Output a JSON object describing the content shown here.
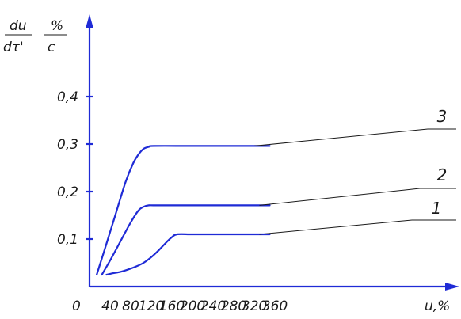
{
  "chart_data": {
    "type": "line",
    "ylabel": {
      "num1": "du",
      "den1": "dτ'",
      "num2": "%",
      "den2": "c"
    },
    "xlabel": "u,%",
    "x_origin_label": "0",
    "x_ticks": [
      40,
      80,
      120,
      160,
      200,
      240,
      280,
      320,
      360
    ],
    "x_tick_labels": [
      "40",
      "80",
      "120",
      "160",
      "200",
      "240",
      "280",
      "320",
      "360"
    ],
    "y_ticks": [
      0.1,
      0.2,
      0.3,
      0.4
    ],
    "y_tick_labels": [
      "0,1",
      "0,2",
      "0,3",
      "0,4"
    ],
    "xlim": [
      0,
      380
    ],
    "ylim": [
      0,
      0.5
    ],
    "grid": false,
    "series": [
      {
        "name": "1",
        "x": [
          33,
          45,
          60,
          75,
          90,
          105,
          120,
          135,
          150,
          160,
          170,
          200,
          250,
          300,
          350
        ],
        "y": [
          0.025,
          0.028,
          0.031,
          0.036,
          0.042,
          0.05,
          0.062,
          0.077,
          0.094,
          0.104,
          0.11,
          0.11,
          0.11,
          0.11,
          0.11
        ]
      },
      {
        "name": "2",
        "x": [
          24,
          40,
          60,
          80,
          95,
          105,
          115,
          130,
          200,
          300,
          350
        ],
        "y": [
          0.025,
          0.055,
          0.095,
          0.135,
          0.16,
          0.168,
          0.171,
          0.171,
          0.171,
          0.171,
          0.171
        ]
      },
      {
        "name": "3",
        "x": [
          14,
          30,
          50,
          70,
          85,
          95,
          105,
          115,
          125,
          200,
          300,
          350
        ],
        "y": [
          0.025,
          0.08,
          0.15,
          0.22,
          0.26,
          0.278,
          0.29,
          0.294,
          0.296,
          0.296,
          0.296,
          0.296
        ]
      }
    ]
  },
  "colors": {
    "axis": "#1f2bd6",
    "curve": "#1f2bd6",
    "text": "#1a1a1a"
  }
}
